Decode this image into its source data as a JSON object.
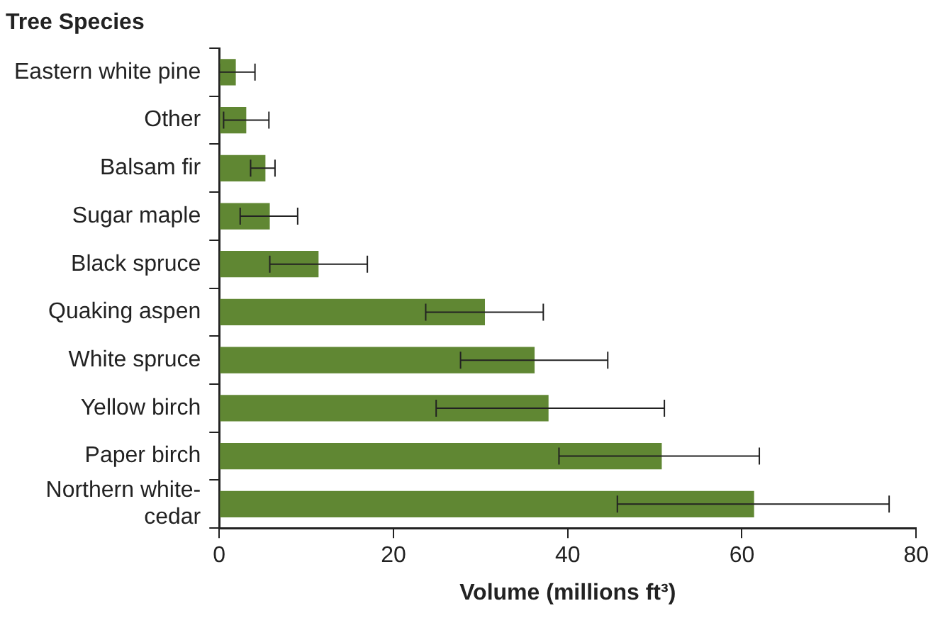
{
  "chart_data": {
    "type": "bar",
    "orientation": "horizontal",
    "ylabel": "Tree Species",
    "xlabel": "Volume (millions ft³)",
    "categories": [
      "Eastern white pine",
      "Other",
      "Balsam fir",
      "Sugar maple",
      "Black spruce",
      "Quaking aspen",
      "White spruce",
      "Yellow birch",
      "Paper birch",
      "Northern white-cedar"
    ],
    "values": [
      1.9,
      3.1,
      5.3,
      5.8,
      11.4,
      30.5,
      36.2,
      37.8,
      50.8,
      61.4
    ],
    "errors": [
      [
        0,
        4.1
      ],
      [
        0.5,
        5.7
      ],
      [
        3.6,
        6.4
      ],
      [
        2.4,
        9.0
      ],
      [
        5.8,
        17.0
      ],
      [
        23.7,
        37.2
      ],
      [
        27.7,
        44.6
      ],
      [
        24.9,
        51.1
      ],
      [
        39.0,
        62.0
      ],
      [
        45.7,
        76.9
      ]
    ],
    "color": "#608733",
    "xlim": [
      0,
      80
    ],
    "xticks": [
      0,
      20,
      40,
      60,
      80
    ],
    "grid": false,
    "legend": false
  }
}
